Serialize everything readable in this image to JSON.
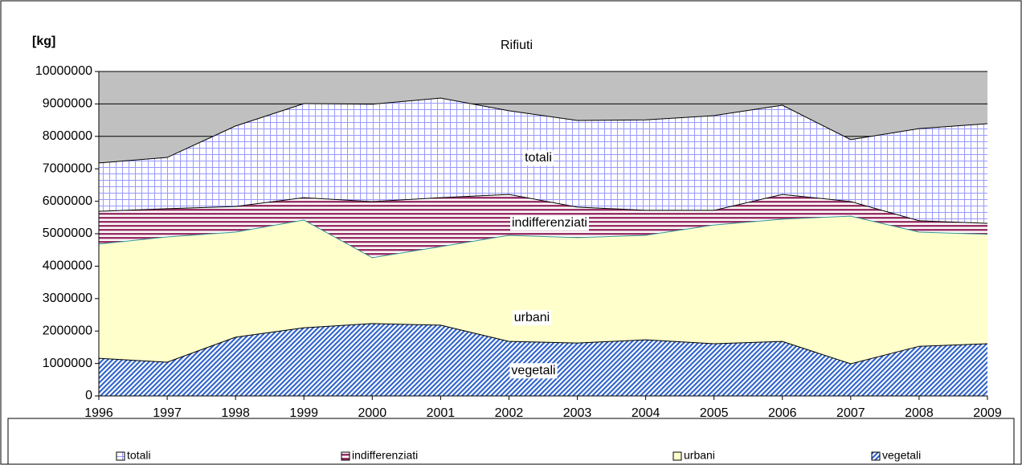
{
  "chart_data": {
    "type": "area",
    "title": "Rifiuti",
    "y_label": "[kg]",
    "categories": [
      "1996",
      "1997",
      "1998",
      "1999",
      "2000",
      "2001",
      "2002",
      "2003",
      "2004",
      "2005",
      "2006",
      "2007",
      "2008",
      "2009"
    ],
    "series": [
      {
        "name": "totali",
        "color": "#9999ff",
        "pattern": "grid",
        "values": [
          7180000,
          7350000,
          8320000,
          9010000,
          8990000,
          9180000,
          8790000,
          8490000,
          8510000,
          8640000,
          8960000,
          7900000,
          8240000,
          8390000
        ]
      },
      {
        "name": "indifferenziati",
        "color": "#993366",
        "pattern": "horizontal",
        "values": [
          5690000,
          5770000,
          5840000,
          6110000,
          5990000,
          6110000,
          6210000,
          5820000,
          5720000,
          5720000,
          6210000,
          5990000,
          5400000,
          5320000
        ]
      },
      {
        "name": "urbani",
        "color": "#ffffcc",
        "pattern": "solid",
        "values": [
          4680000,
          4900000,
          5050000,
          5420000,
          4260000,
          4600000,
          4950000,
          4880000,
          4950000,
          5270000,
          5450000,
          5540000,
          5050000,
          4980000
        ]
      },
      {
        "name": "vegetali",
        "color": "#3366cc",
        "pattern": "diagonal",
        "values": [
          1160000,
          1040000,
          1810000,
          2100000,
          2230000,
          2180000,
          1680000,
          1630000,
          1730000,
          1610000,
          1680000,
          990000,
          1530000,
          1610000
        ]
      }
    ],
    "ylim": [
      0,
      10000000
    ],
    "yticks": [
      0,
      1000000,
      2000000,
      3000000,
      4000000,
      5000000,
      6000000,
      7000000,
      8000000,
      9000000,
      10000000
    ],
    "grid": true,
    "legend": "bottom",
    "plot_background": "#c0c0c0"
  }
}
